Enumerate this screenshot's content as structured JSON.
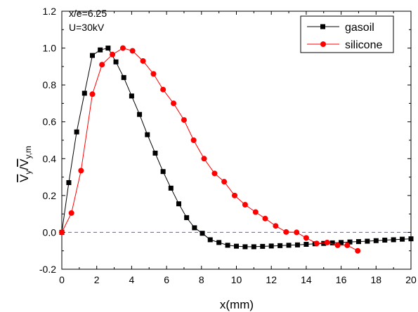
{
  "chart_data": {
    "type": "line",
    "title": "",
    "xlabel": "x(mm)",
    "ylabel_main": "V",
    "ylabel_sub1": "y",
    "ylabel_sep": "/",
    "ylabel_sub2": "y,m",
    "xlim": [
      0,
      20
    ],
    "ylim": [
      -0.2,
      1.2
    ],
    "xticks": [
      0,
      2,
      4,
      6,
      8,
      10,
      12,
      14,
      16,
      18,
      20
    ],
    "yticks": [
      -0.2,
      0.0,
      0.2,
      0.4,
      0.6,
      0.8,
      1.0,
      1.2
    ],
    "ytick_labels": [
      "-0.2",
      "0.0",
      "0.2",
      "0.4",
      "0.6",
      "0.8",
      "1.0",
      "1.2"
    ],
    "grid": false,
    "legend_position": "top-right",
    "reference_line": {
      "y": 0.0,
      "color": "#4a5ff0",
      "style": "dashed"
    },
    "annotations": [
      "x/e=6.25",
      "U=30kV"
    ],
    "series": [
      {
        "name": "gasoil",
        "color": "#000000",
        "marker": "square",
        "x": [
          0,
          0.4,
          0.85,
          1.3,
          1.75,
          2.2,
          2.65,
          3.1,
          3.55,
          4.0,
          4.45,
          4.9,
          5.35,
          5.8,
          6.25,
          6.7,
          7.15,
          7.6,
          8.05,
          8.5,
          9.0,
          9.5,
          10.0,
          10.5,
          11.0,
          11.5,
          12.0,
          12.5,
          13.0,
          13.5,
          14.0,
          14.5,
          15.0,
          15.5,
          16.0,
          16.5,
          17.0,
          17.5,
          18.0,
          18.5,
          19.0,
          19.5,
          20.0
        ],
        "y": [
          0.0,
          0.27,
          0.545,
          0.755,
          0.96,
          0.99,
          1.0,
          0.925,
          0.84,
          0.74,
          0.64,
          0.53,
          0.43,
          0.33,
          0.24,
          0.155,
          0.08,
          0.025,
          -0.005,
          -0.04,
          -0.055,
          -0.07,
          -0.075,
          -0.078,
          -0.078,
          -0.076,
          -0.074,
          -0.072,
          -0.07,
          -0.068,
          -0.065,
          -0.062,
          -0.06,
          -0.057,
          -0.055,
          -0.052,
          -0.05,
          -0.048,
          -0.045,
          -0.042,
          -0.04,
          -0.037,
          -0.035
        ]
      },
      {
        "name": "silicone",
        "color": "#ff0000",
        "marker": "circle",
        "x": [
          0,
          0.55,
          1.1,
          1.75,
          2.3,
          2.9,
          3.5,
          4.05,
          4.65,
          5.25,
          5.8,
          6.4,
          7.0,
          7.55,
          8.15,
          8.75,
          9.3,
          9.9,
          10.5,
          11.1,
          11.65,
          12.25,
          12.85,
          13.45,
          14.0,
          14.6,
          15.2,
          15.8,
          16.35,
          16.95
        ],
        "y": [
          0.0,
          0.105,
          0.335,
          0.75,
          0.91,
          0.965,
          1.0,
          0.985,
          0.93,
          0.86,
          0.775,
          0.7,
          0.61,
          0.5,
          0.4,
          0.32,
          0.275,
          0.2,
          0.15,
          0.11,
          0.075,
          0.035,
          0.002,
          0.0,
          -0.03,
          -0.06,
          -0.055,
          -0.07,
          -0.07,
          -0.1
        ]
      }
    ]
  }
}
